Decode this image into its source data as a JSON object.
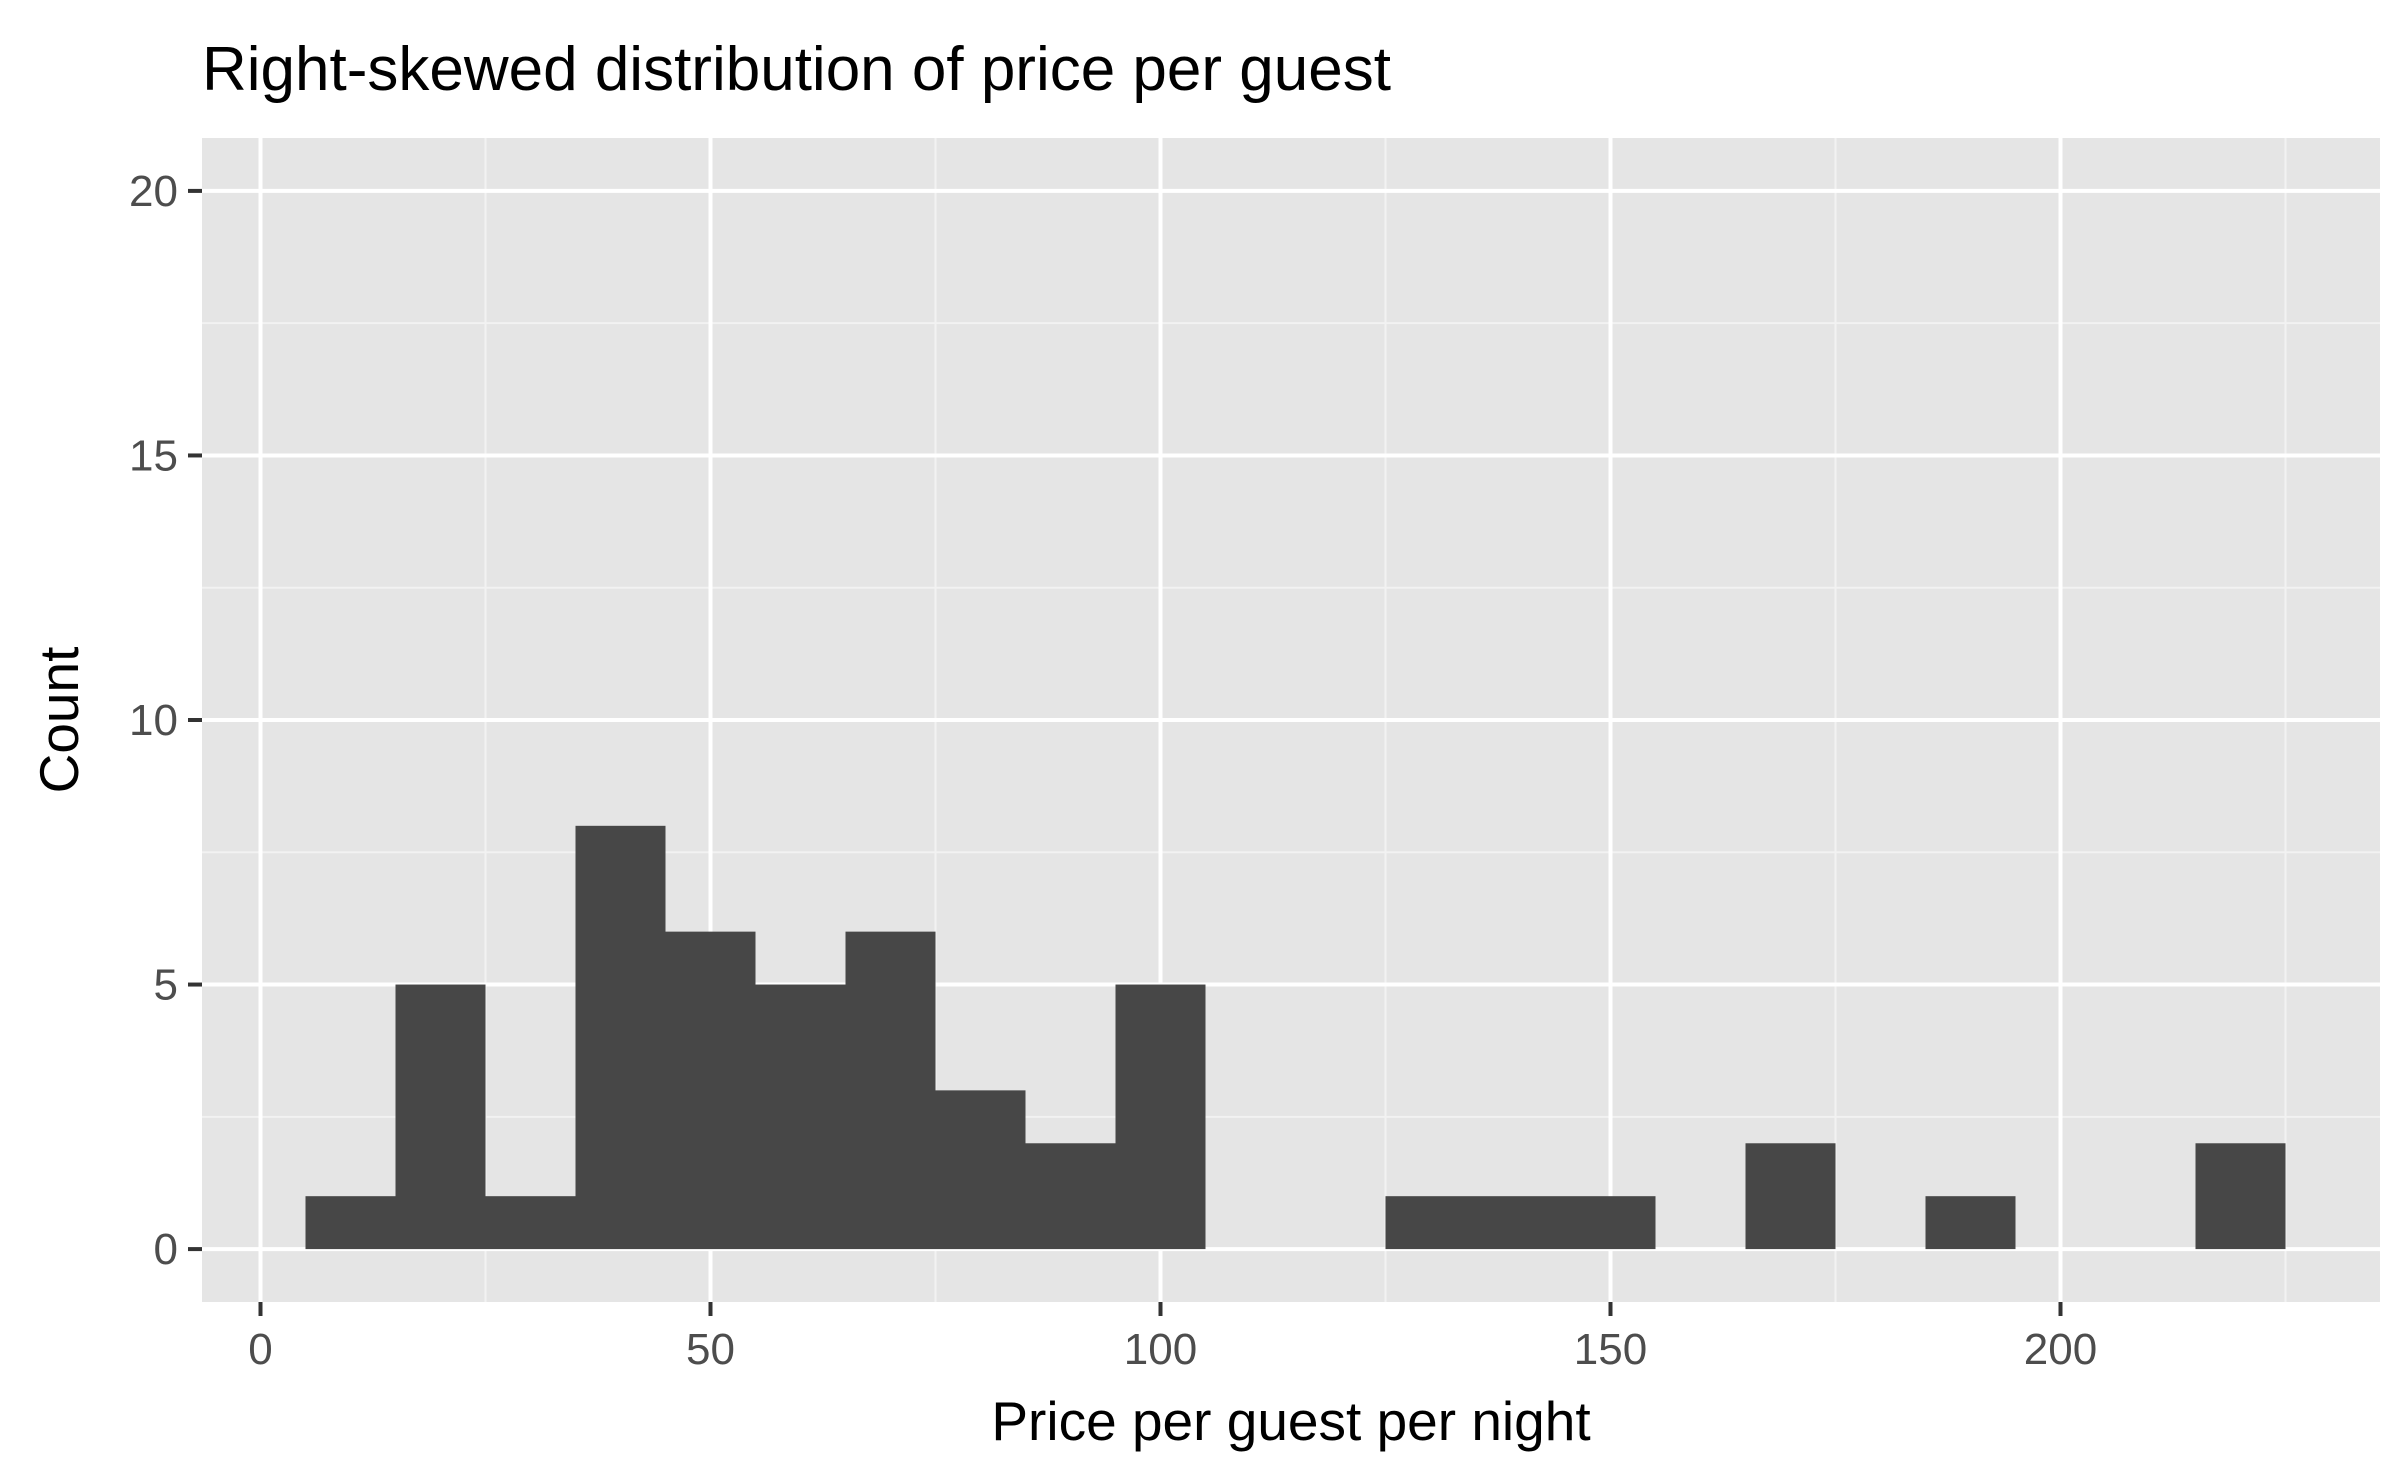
{
  "chart_data": {
    "type": "bar",
    "title": "Right-skewed distribution of price per guest",
    "xlabel": "Price per guest per night",
    "ylabel": "Count",
    "bin_width": 10,
    "bins": [
      {
        "x_start": 5,
        "x_end": 15,
        "count": 1
      },
      {
        "x_start": 15,
        "x_end": 25,
        "count": 5
      },
      {
        "x_start": 25,
        "x_end": 35,
        "count": 1
      },
      {
        "x_start": 35,
        "x_end": 45,
        "count": 8
      },
      {
        "x_start": 45,
        "x_end": 55,
        "count": 6
      },
      {
        "x_start": 55,
        "x_end": 65,
        "count": 5
      },
      {
        "x_start": 65,
        "x_end": 75,
        "count": 6
      },
      {
        "x_start": 75,
        "x_end": 85,
        "count": 3
      },
      {
        "x_start": 85,
        "x_end": 95,
        "count": 2
      },
      {
        "x_start": 95,
        "x_end": 105,
        "count": 5
      },
      {
        "x_start": 105,
        "x_end": 115,
        "count": 0
      },
      {
        "x_start": 115,
        "x_end": 125,
        "count": 0
      },
      {
        "x_start": 125,
        "x_end": 135,
        "count": 1
      },
      {
        "x_start": 135,
        "x_end": 145,
        "count": 1
      },
      {
        "x_start": 145,
        "x_end": 155,
        "count": 1
      },
      {
        "x_start": 155,
        "x_end": 165,
        "count": 0
      },
      {
        "x_start": 165,
        "x_end": 175,
        "count": 2
      },
      {
        "x_start": 175,
        "x_end": 185,
        "count": 0
      },
      {
        "x_start": 185,
        "x_end": 195,
        "count": 1
      },
      {
        "x_start": 195,
        "x_end": 205,
        "count": 0
      },
      {
        "x_start": 205,
        "x_end": 215,
        "count": 0
      },
      {
        "x_start": 215,
        "x_end": 225,
        "count": 2
      }
    ],
    "xlim": [
      -6.5,
      235.5
    ],
    "ylim": [
      -1,
      21
    ],
    "x_ticks": [
      0,
      50,
      100,
      150,
      200
    ],
    "x_tick_labels": [
      "0",
      "50",
      "100",
      "150",
      "200"
    ],
    "y_ticks": [
      0,
      5,
      10,
      15,
      20
    ],
    "y_tick_labels": [
      "0",
      "5",
      "10",
      "15",
      "20"
    ],
    "grid": true,
    "colors": {
      "bar_fill": "#474747",
      "panel_background": "#e5e5e5",
      "grid_major": "#ffffff",
      "grid_minor": "#f2f2f2",
      "tick_label": "#4d4d4d",
      "tick_mark": "#333333",
      "text": "#000000"
    }
  }
}
